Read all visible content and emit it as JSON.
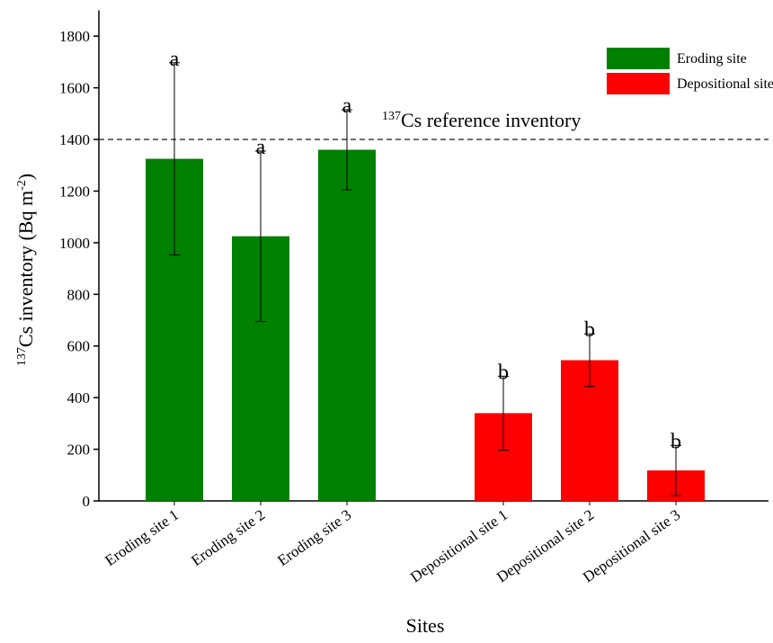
{
  "chart_data": {
    "type": "bar",
    "categories": [
      "Eroding site 1",
      "Eroding site 2",
      "Eroding site 3",
      "Depositional site 1",
      "Depositional site 2",
      "Depositional site 3"
    ],
    "series": [
      {
        "name": "Eroding site",
        "color": "#008000",
        "values": [
          1325,
          1025,
          1360,
          null,
          null,
          null
        ],
        "errors": [
          372,
          330,
          155,
          null,
          null,
          null
        ],
        "letters": [
          "a",
          "a",
          "a",
          null,
          null,
          null
        ]
      },
      {
        "name": "Depositional site",
        "color": "#ff0000",
        "values": [
          null,
          null,
          null,
          340,
          545,
          118
        ],
        "errors": [
          null,
          null,
          null,
          143,
          102,
          97
        ],
        "letters": [
          null,
          null,
          null,
          "b",
          "b",
          "b"
        ]
      }
    ],
    "ylim": [
      0,
      1900
    ],
    "yticks": [
      0,
      200,
      400,
      600,
      800,
      1000,
      1200,
      1400,
      1600,
      1800
    ],
    "xlabel": "Sites",
    "ylabel": {
      "sup1": "137",
      "text1": "Cs inventory (Bq m",
      "sup2": "-2",
      "text2": ")"
    },
    "reference_line": {
      "value": 1400,
      "sup": "137",
      "label": "Cs reference inventory"
    },
    "legend": "upper right"
  }
}
